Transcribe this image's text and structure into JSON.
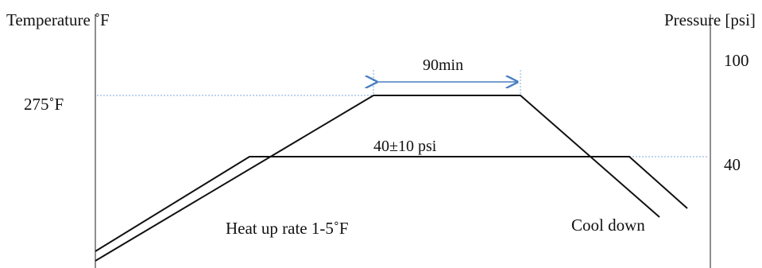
{
  "diagram": {
    "left_axis_label": "Temperature  ˚F",
    "right_axis_label": "Pressure [psi]",
    "temperature_level_label": "275˚F",
    "pressure_tick_high": "100",
    "pressure_tick_low": "40",
    "hold_time_label": "90min",
    "pressure_label": "40±10 psi",
    "heat_up_label": "Heat up rate 1-5˚F",
    "cool_down_label": "Cool down",
    "colors": {
      "line": "#111111",
      "axis": "#444444",
      "dotted_guide": "#7aa9dc",
      "arrow": "#4a7fc1"
    }
  }
}
